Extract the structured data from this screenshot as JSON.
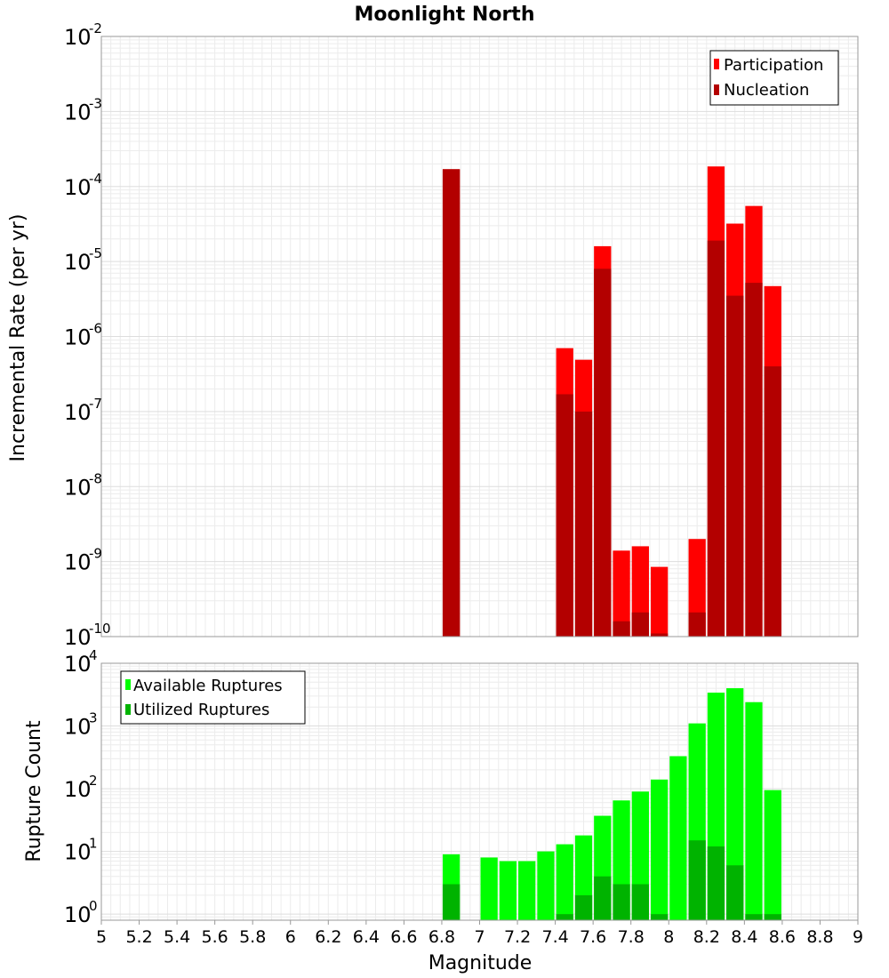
{
  "title": "Moonlight North",
  "xlabel": "Magnitude",
  "x_ticks": [
    "5",
    "5.2",
    "5.4",
    "5.6",
    "5.8",
    "6",
    "6.2",
    "6.4",
    "6.6",
    "6.8",
    "7",
    "7.2",
    "7.4",
    "7.6",
    "7.8",
    "8",
    "8.2",
    "8.4",
    "8.6",
    "8.8",
    "9"
  ],
  "colors": {
    "participation": "#ff0000",
    "nucleation": "#b30000",
    "available": "#00ff00",
    "utilized": "#00b300"
  },
  "chart_data": [
    {
      "type": "bar",
      "ylabel": "Incremental Rate (per yr)",
      "yscale": "log",
      "xlim": [
        5,
        9
      ],
      "ylim": [
        1e-10,
        0.01
      ],
      "y_tick_exponents": [
        "-2",
        "-3",
        "-4",
        "-5",
        "-6",
        "-7",
        "-8",
        "-9",
        "-10"
      ],
      "grid": true,
      "legend_position": "top-right",
      "bar_width": 0.1,
      "x": [
        6.85,
        7.45,
        7.55,
        7.65,
        7.75,
        7.85,
        7.95,
        8.15,
        8.25,
        8.35,
        8.45,
        8.55
      ],
      "series": [
        {
          "name": "Participation",
          "values": [
            0.00017,
            7e-07,
            4.9e-07,
            1.6e-05,
            1.4e-09,
            1.6e-09,
            8.5e-10,
            2e-09,
            0.000185,
            3.2e-05,
            5.5e-05,
            4.7e-06
          ]
        },
        {
          "name": "Nucleation",
          "values": [
            0.00017,
            1.7e-07,
            1e-07,
            8e-06,
            1.6e-10,
            2.1e-10,
            1.1e-10,
            2.1e-10,
            1.9e-05,
            3.5e-06,
            5.2e-06,
            4e-07
          ]
        }
      ]
    },
    {
      "type": "bar",
      "ylabel": "Rupture Count",
      "yscale": "log",
      "xlim": [
        5,
        9
      ],
      "ylim": [
        0.8,
        10000
      ],
      "y_tick_exponents": [
        "4",
        "3",
        "2",
        "1",
        "0"
      ],
      "grid": true,
      "legend_position": "top-left",
      "bar_width": 0.1,
      "x": [
        6.85,
        7.05,
        7.15,
        7.25,
        7.35,
        7.45,
        7.55,
        7.65,
        7.75,
        7.85,
        7.95,
        8.05,
        8.15,
        8.25,
        8.35,
        8.45,
        8.55
      ],
      "series": [
        {
          "name": "Available Ruptures",
          "values": [
            9,
            8,
            7,
            7,
            10,
            13,
            18,
            37,
            65,
            90,
            140,
            330,
            1100,
            3400,
            4000,
            2400,
            95
          ]
        },
        {
          "name": "Utilized Ruptures",
          "values": [
            3,
            0,
            0,
            0,
            0,
            1,
            2,
            4,
            3,
            3,
            1,
            0,
            15,
            12,
            6,
            1,
            1
          ]
        }
      ]
    }
  ]
}
